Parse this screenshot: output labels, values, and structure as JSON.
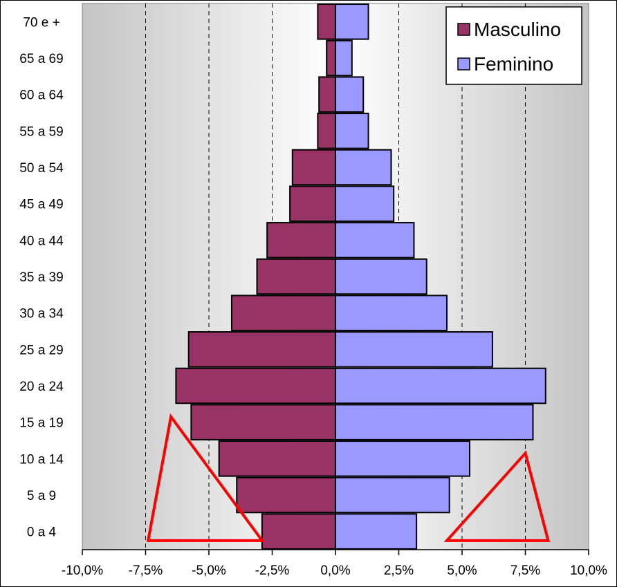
{
  "chart_data": {
    "type": "bar",
    "orientation": "horizontal",
    "subtype": "population-pyramid",
    "categories": [
      "0 a 4",
      "5 a 9",
      "10 a 14",
      "15 a 19",
      "20 a 24",
      "25 a 29",
      "30 a 34",
      "35 a 39",
      "40 a 44",
      "45 a 49",
      "50 a 54",
      "55 a 59",
      "60 a 64",
      "65 a 69",
      "70 e +"
    ],
    "series": [
      {
        "name": "Masculino",
        "color": "#993366",
        "values": [
          -2.9,
          -3.9,
          -4.6,
          -5.7,
          -6.3,
          -5.8,
          -4.1,
          -3.1,
          -2.7,
          -1.8,
          -1.7,
          -0.7,
          -0.65,
          -0.35,
          -0.7
        ]
      },
      {
        "name": "Feminino",
        "color": "#9999FF",
        "values": [
          3.2,
          4.5,
          5.3,
          7.8,
          8.3,
          6.2,
          4.4,
          3.6,
          3.1,
          2.3,
          2.2,
          1.3,
          1.1,
          0.65,
          1.3
        ]
      }
    ],
    "xlim": [
      -10,
      10
    ],
    "xticks": [
      -10,
      -7.5,
      -5,
      -2.5,
      0,
      2.5,
      5,
      7.5,
      10
    ],
    "xtick_labels": [
      "-10,0%",
      "-7,5%",
      "-5,0%",
      "-2,5%",
      "0,0%",
      "2,5%",
      "5,0%",
      "7,5%",
      "10,0%"
    ],
    "grid": "vertical-dashed",
    "legend": "top-right",
    "title": "",
    "xlabel": "",
    "ylabel": "",
    "annotations": [
      {
        "type": "triangle",
        "color": "#FF0000",
        "points": [
          [
            -7.4,
            "0 a 4"
          ],
          [
            -6.5,
            "15 a 19"
          ],
          [
            -2.9,
            "0 a 4"
          ]
        ]
      },
      {
        "type": "triangle",
        "color": "#FF0000",
        "points": [
          [
            4.4,
            "0 a 4"
          ],
          [
            7.5,
            "10 a 14"
          ],
          [
            8.4,
            "0 a 4"
          ]
        ]
      }
    ]
  }
}
